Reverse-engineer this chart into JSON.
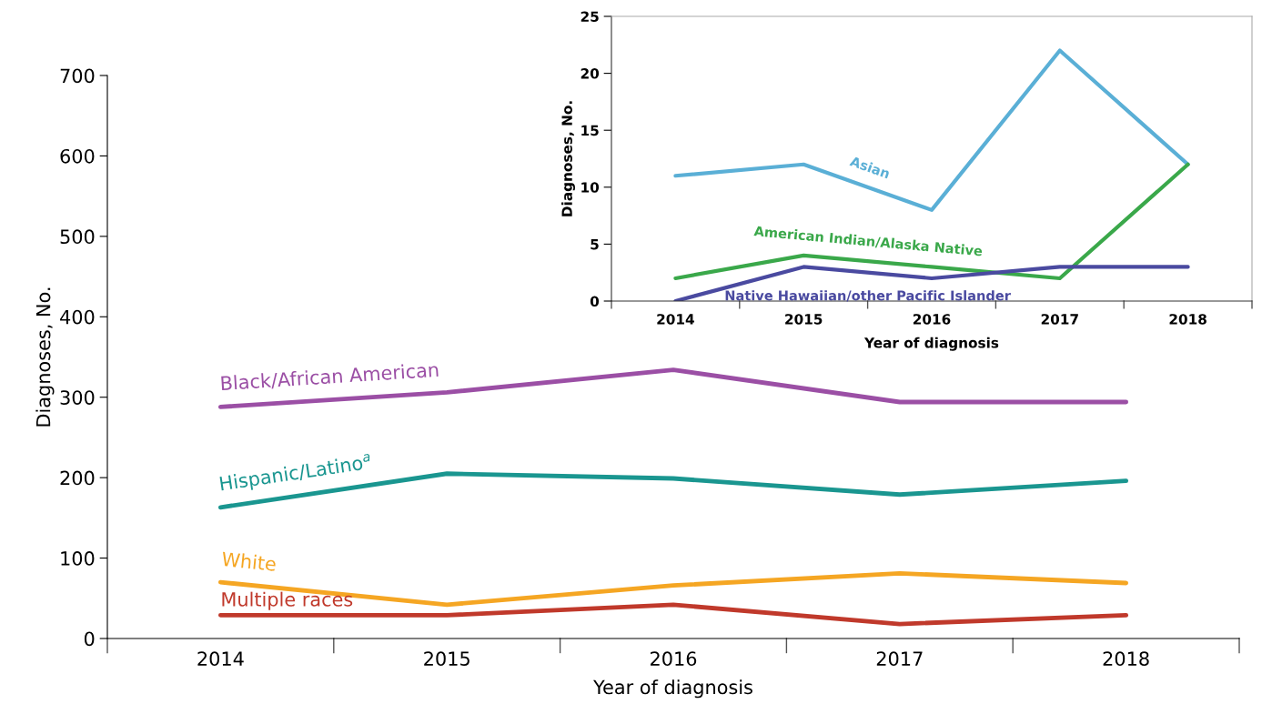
{
  "chart_data": [
    {
      "type": "line",
      "xlabel": "Year of diagnosis",
      "ylabel": "Diagnoses, No.",
      "categories": [
        "2014",
        "2015",
        "2016",
        "2017",
        "2018"
      ],
      "ylim": [
        0,
        700
      ],
      "yticks": [
        0,
        100,
        200,
        300,
        400,
        500,
        600,
        700
      ],
      "grid": false,
      "legend": false,
      "marker": "none",
      "line_style": "solid",
      "series": [
        {
          "name": "Black/African American",
          "color": "#9b4fa5",
          "values": [
            288,
            306,
            334,
            294,
            294
          ]
        },
        {
          "name": "Hispanic/Latino$^{a}$",
          "color": "#1a9690",
          "values": [
            163,
            205,
            199,
            179,
            196
          ]
        },
        {
          "name": "White",
          "color": "#f5a623",
          "values": [
            70,
            42,
            66,
            81,
            69
          ]
        },
        {
          "name": "Multiple races",
          "color": "#c0392b",
          "values": [
            29,
            29,
            42,
            18,
            29
          ]
        }
      ]
    },
    {
      "type": "line",
      "xlabel": "Year of diagnosis",
      "ylabel": "Diagnoses, No.",
      "categories": [
        "2014",
        "2015",
        "2016",
        "2017",
        "2018"
      ],
      "ylim": [
        0,
        25
      ],
      "yticks": [
        0,
        5,
        10,
        15,
        20,
        25
      ],
      "grid": false,
      "legend": false,
      "marker": "none",
      "line_style": "solid",
      "series": [
        {
          "name": "Asian",
          "color": "#5aafd6",
          "values": [
            11,
            12,
            8,
            22,
            12
          ]
        },
        {
          "name": "American Indian/Alaska Native",
          "color": "#3aa84a",
          "values": [
            2,
            4,
            3,
            2,
            12
          ]
        },
        {
          "name": "Native Hawaiian/other Pacific Islander",
          "color": "#4a4aa0",
          "values": [
            0,
            3,
            2,
            3,
            3
          ]
        }
      ]
    }
  ]
}
